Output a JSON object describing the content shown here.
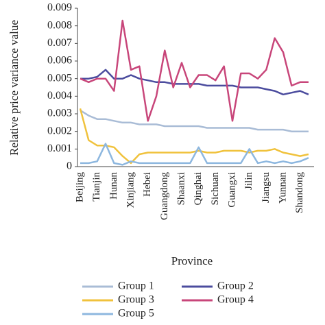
{
  "chart_data": {
    "type": "line",
    "ylabel": "Relative price variance value",
    "xlabel": "Province",
    "categories": [
      "Beijing",
      null,
      "Tianjin",
      null,
      "Hunan",
      null,
      "Xinjiang",
      null,
      "Hebei",
      null,
      "Guangdong",
      null,
      "Shaanxi",
      null,
      "Qinghai",
      null,
      "Sichuan",
      null,
      "Guangxi",
      null,
      "Jilin",
      null,
      "Jiangsu",
      null,
      "Yunnan",
      null,
      "Shandong",
      null
    ],
    "ylim": [
      0,
      0.009
    ],
    "yticks": [
      0,
      0.001,
      0.002,
      0.003,
      0.004,
      0.005,
      0.006,
      0.007,
      0.008,
      0.009
    ],
    "series": [
      {
        "name": "Group 1",
        "color": "#a9bcd6",
        "values": [
          0.0032,
          0.0029,
          0.0027,
          0.0027,
          0.0026,
          0.0025,
          0.0025,
          0.0024,
          0.0024,
          0.0024,
          0.0023,
          0.0023,
          0.0023,
          0.0023,
          0.0023,
          0.0022,
          0.0022,
          0.0022,
          0.0022,
          0.0022,
          0.0022,
          0.0021,
          0.0021,
          0.0021,
          0.0021,
          0.002,
          0.002,
          0.002
        ]
      },
      {
        "name": "Group 2",
        "color": "#4b4c9e",
        "values": [
          0.005,
          0.005,
          0.0051,
          0.0055,
          0.005,
          0.005,
          0.0052,
          0.005,
          0.0049,
          0.0048,
          0.0048,
          0.0047,
          0.0047,
          0.0047,
          0.0047,
          0.0046,
          0.0046,
          0.0046,
          0.0046,
          0.0045,
          0.0045,
          0.0045,
          0.0044,
          0.0043,
          0.0041,
          0.0042,
          0.0043,
          0.0041
        ]
      },
      {
        "name": "Group 3",
        "color": "#f0c23c",
        "values": [
          0.0033,
          0.0015,
          0.0012,
          0.0012,
          0.0011,
          0.0006,
          0.0002,
          0.0007,
          0.0008,
          0.0008,
          0.0008,
          0.0008,
          0.0008,
          0.0008,
          0.0009,
          0.0008,
          0.0008,
          0.0009,
          0.0009,
          0.0009,
          0.0008,
          0.0009,
          0.0009,
          0.001,
          0.0008,
          0.0007,
          0.0006,
          0.0007
        ]
      },
      {
        "name": "Group 4",
        "color": "#c8467a",
        "values": [
          0.005,
          0.0048,
          0.005,
          0.005,
          0.0043,
          0.0083,
          0.0055,
          0.0057,
          0.0026,
          0.004,
          0.0066,
          0.0045,
          0.0059,
          0.0045,
          0.0052,
          0.0052,
          0.0049,
          0.0057,
          0.0026,
          0.0053,
          0.0053,
          0.005,
          0.0055,
          0.0073,
          0.0065,
          0.0046,
          0.0048,
          0.0048
        ]
      },
      {
        "name": "Group 5",
        "color": "#8db7df",
        "values": [
          0.0002,
          0.0002,
          0.0003,
          0.0013,
          0.0002,
          0.0001,
          0.0003,
          0.0002,
          0.0002,
          0.0002,
          0.0002,
          0.0002,
          0.0002,
          0.0002,
          0.0011,
          0.0002,
          0.0002,
          0.0002,
          0.0002,
          0.0002,
          0.001,
          0.0002,
          0.0003,
          0.0002,
          0.0003,
          0.0002,
          0.0003,
          0.0005
        ]
      }
    ]
  }
}
